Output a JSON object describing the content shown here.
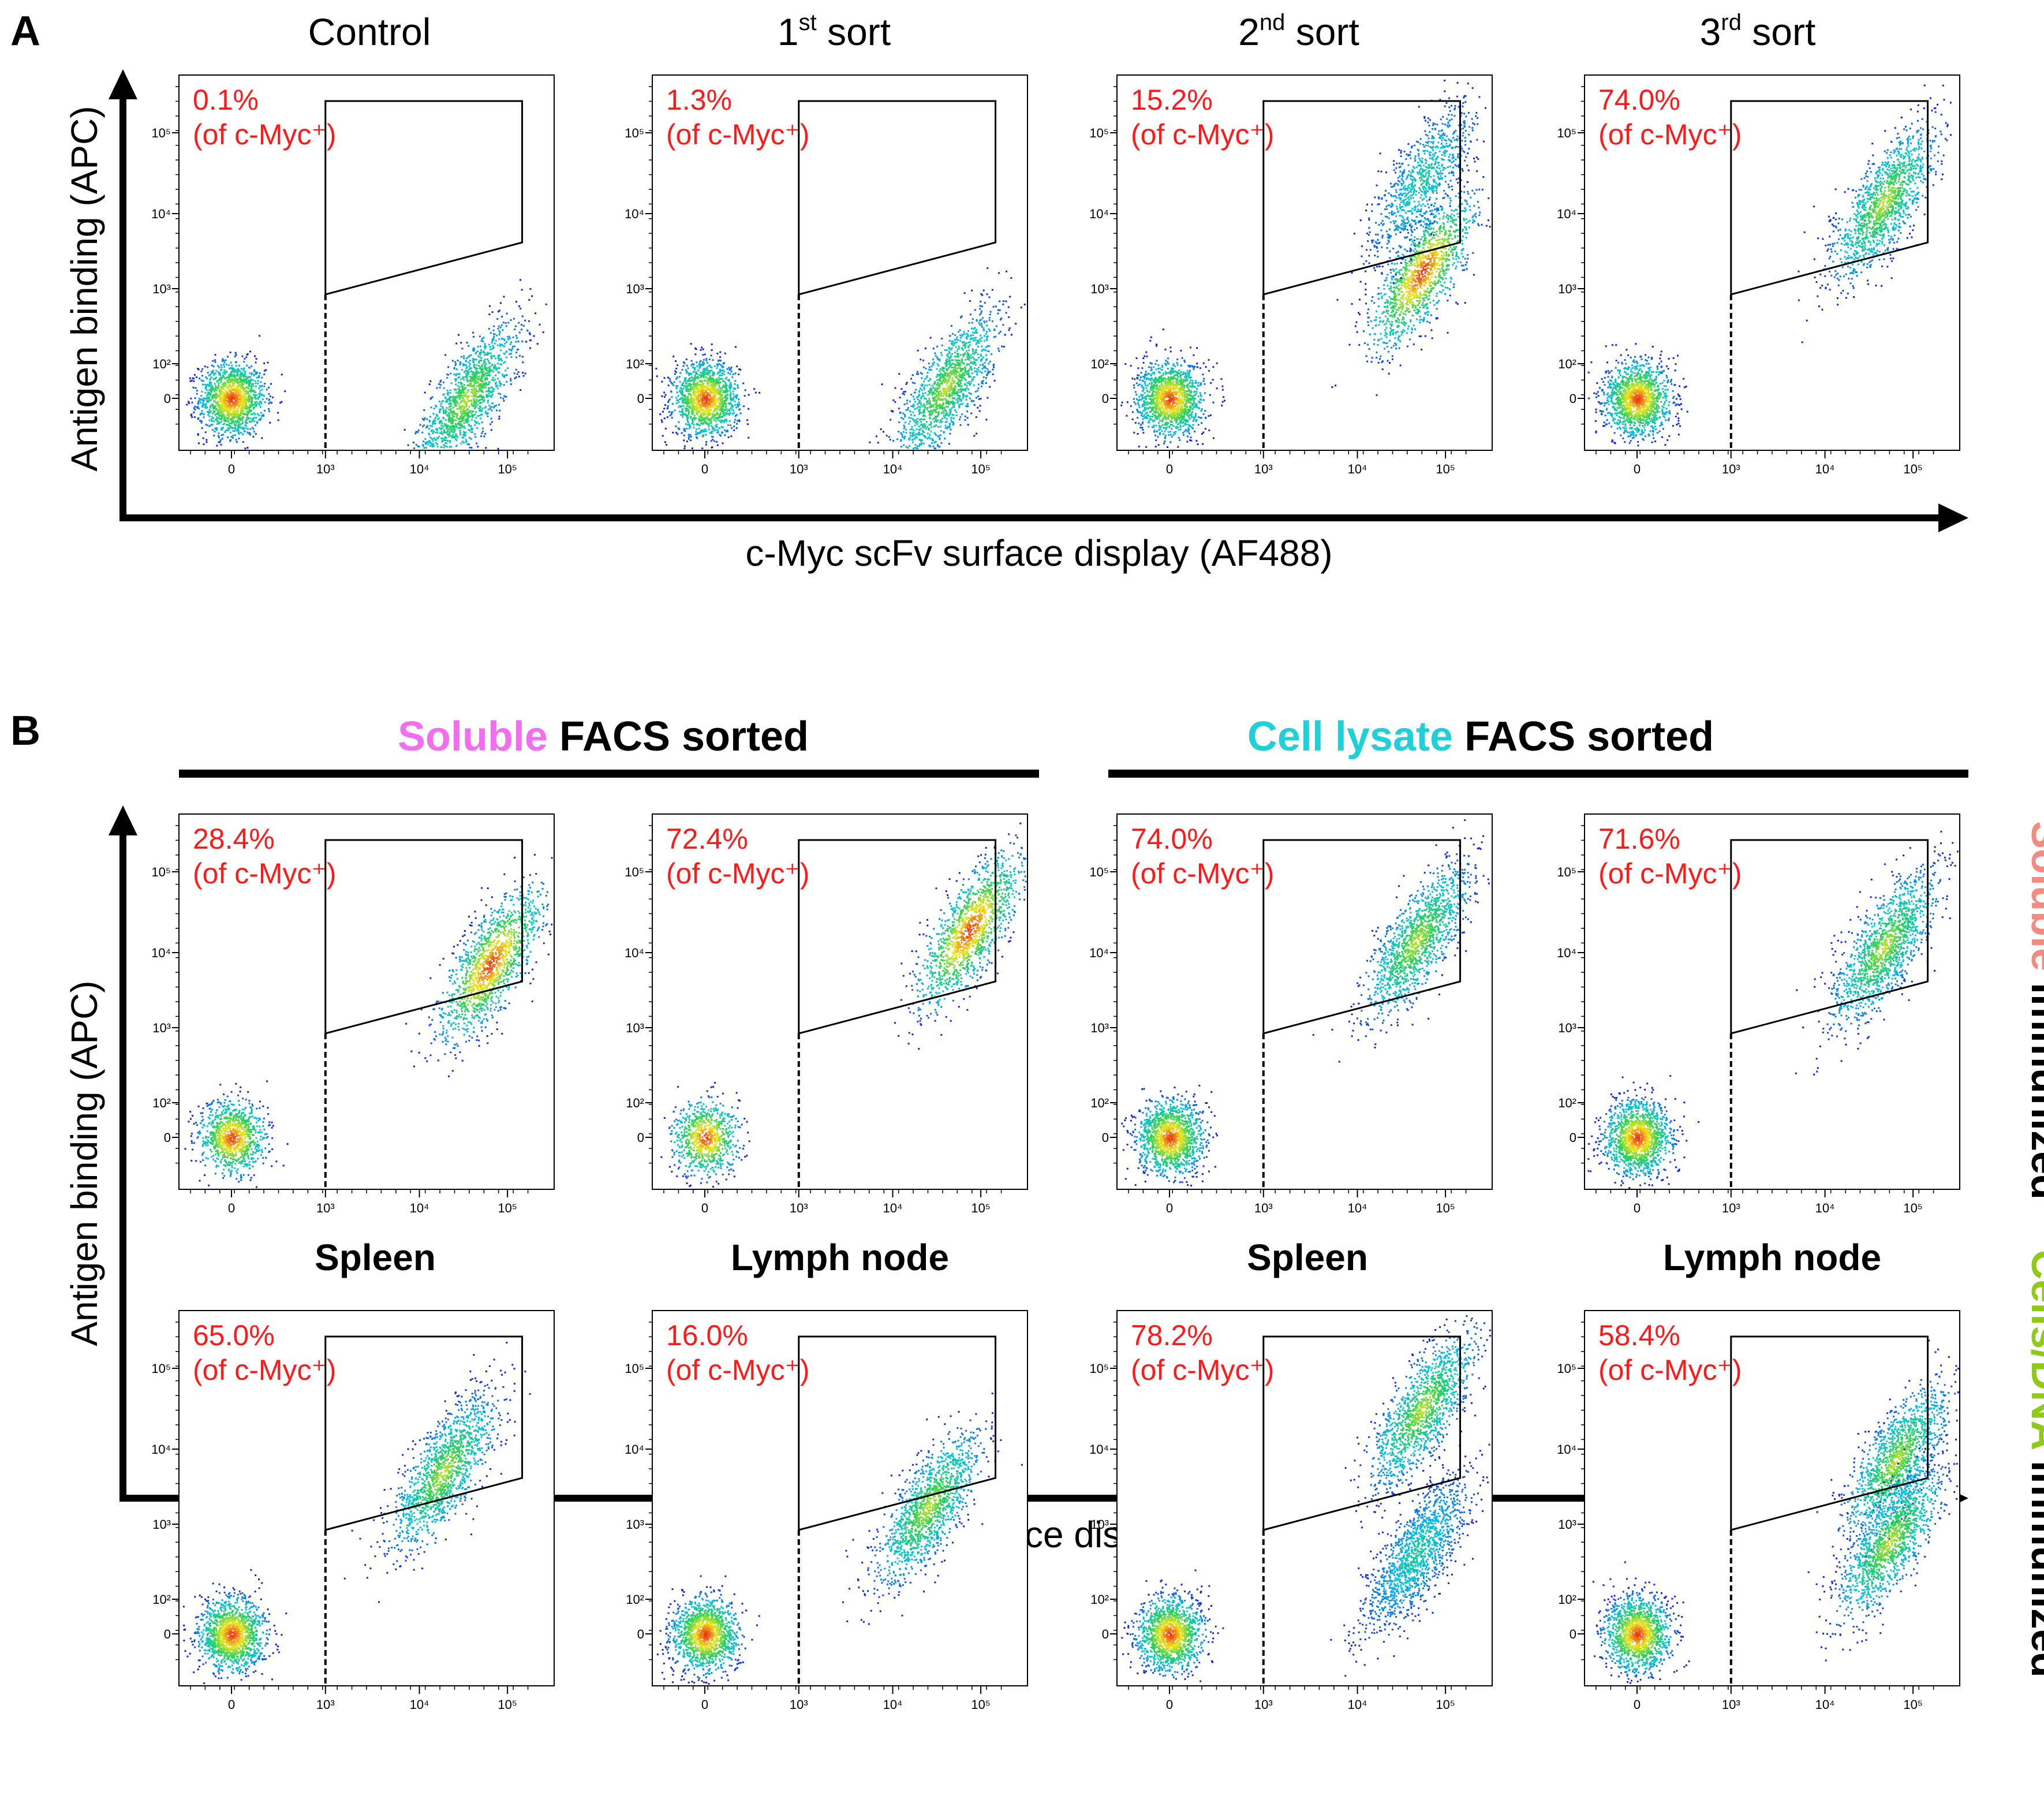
{
  "figure": {
    "panel_a_letter": "A",
    "panel_b_letter": "B",
    "panel_a_x_label": "c-Myc scFv surface display (AF488)",
    "panel_a_y_label": "Antigen binding (APC)",
    "panel_b_x_label": "c-Myc scFv surface display (AF488)",
    "panel_b_y_label": "Antigen binding (APC)",
    "panel_a_titles": [
      {
        "text": "Control",
        "sup": ""
      },
      {
        "text": "1",
        "sup": "st",
        "rest": " sort"
      },
      {
        "text": "2",
        "sup": "nd",
        "rest": " sort"
      },
      {
        "text": "3",
        "sup": "rd",
        "rest": " sort"
      }
    ],
    "group_soluble": {
      "colored": "Soluble",
      "rest": " FACS sorted"
    },
    "group_lysate": {
      "colored": "Cell lysate",
      "rest": " FACS sorted"
    },
    "row_labels": [
      "Spleen",
      "Lymph node",
      "Spleen",
      "Lymph node"
    ],
    "side_label_1": {
      "colored": "Soluble",
      "rest": " immunized"
    },
    "side_label_2": {
      "colored": "Cells/DNA",
      "rest": " immunized"
    },
    "colors": {
      "soluble": "#f26df0",
      "lysate": "#1fd0d8",
      "side_soluble": "#f58a80",
      "side_cells": "#8fca18",
      "percent_text": "#ff1a1a",
      "axis": "#000000"
    }
  },
  "chart_data": [
    {
      "type": "scatter",
      "panel": "A1",
      "title": "Control",
      "percent": "0.1%",
      "note": "(of c-Myc⁺)",
      "gate_bottom_left": "10^2.6",
      "x_ticks": [
        "0",
        "10³",
        "10⁴",
        "10⁵"
      ],
      "y_ticks": [
        "0",
        "10²",
        "10³",
        "10⁴",
        "10⁵"
      ],
      "populations": [
        {
          "x": 0.0,
          "y": 0.0,
          "n": 3500,
          "level": "high"
        },
        {
          "x": 4.0,
          "y": 0.0,
          "n": 3000,
          "level": "mid"
        }
      ]
    },
    {
      "type": "scatter",
      "panel": "A2",
      "title": "1st sort",
      "percent": "1.3%",
      "note": "(of c-Myc⁺)",
      "x_ticks": [
        "0",
        "10³",
        "10⁴",
        "10⁵"
      ],
      "y_ticks": [
        "0",
        "10²",
        "10³",
        "10⁴",
        "10⁵"
      ],
      "populations": [
        {
          "x": 0.0,
          "y": 0.0,
          "n": 3200,
          "level": "high"
        },
        {
          "x": 4.1,
          "y": 0.2,
          "n": 2800,
          "level": "mid"
        }
      ]
    },
    {
      "type": "scatter",
      "panel": "A3",
      "title": "2nd sort",
      "percent": "15.2%",
      "note": "(of c-Myc⁺)",
      "x_ticks": [
        "0",
        "10³",
        "10⁴",
        "10⁵"
      ],
      "y_ticks": [
        "0",
        "10²",
        "10³",
        "10⁴",
        "10⁵"
      ],
      "populations": [
        {
          "x": 0.0,
          "y": 0.0,
          "n": 2000,
          "level": "high"
        },
        {
          "x": 4.3,
          "y": 2.2,
          "n": 3200,
          "level": "high"
        },
        {
          "x": 4.3,
          "y": 3.8,
          "n": 900,
          "level": "low"
        }
      ]
    },
    {
      "type": "scatter",
      "panel": "A4",
      "title": "3rd sort",
      "percent": "74.0%",
      "note": "(of c-Myc⁺)",
      "x_ticks": [
        "0",
        "10³",
        "10⁴",
        "10⁵"
      ],
      "y_ticks": [
        "0",
        "10²",
        "10³",
        "10⁴",
        "10⁵"
      ],
      "populations": [
        {
          "x": 0.0,
          "y": 0.0,
          "n": 1800,
          "level": "high"
        },
        {
          "x": 4.2,
          "y": 3.4,
          "n": 5000,
          "level": "mid"
        }
      ]
    },
    {
      "type": "scatter",
      "panel": "B1",
      "row": "Soluble immunized",
      "col": "Spleen / Soluble FACS sorted",
      "percent": "28.4%",
      "note": "(of c-Myc⁺)",
      "x_ticks": [
        "0",
        "10³",
        "10⁴",
        "10⁵"
      ],
      "y_ticks": [
        "0",
        "10²",
        "10³",
        "10⁴",
        "10⁵"
      ],
      "populations": [
        {
          "x": 0.0,
          "y": 0.0,
          "n": 1000,
          "level": "high"
        },
        {
          "x": 4.4,
          "y": 3.0,
          "n": 5000,
          "level": "high"
        }
      ]
    },
    {
      "type": "scatter",
      "panel": "B2",
      "row": "Soluble immunized",
      "col": "Lymph node / Soluble FACS sorted",
      "percent": "72.4%",
      "note": "(of c-Myc⁺)",
      "x_ticks": [
        "0",
        "10³",
        "10⁴",
        "10⁵"
      ],
      "y_ticks": [
        "0",
        "10²",
        "10³",
        "10⁴",
        "10⁵"
      ],
      "populations": [
        {
          "x": 0.0,
          "y": 0.0,
          "n": 800,
          "level": "high"
        },
        {
          "x": 4.5,
          "y": 3.6,
          "n": 5000,
          "level": "high"
        }
      ]
    },
    {
      "type": "scatter",
      "panel": "B3",
      "row": "Soluble immunized",
      "col": "Spleen / Cell lysate FACS sorted",
      "percent": "74.0%",
      "note": "(of c-Myc⁺)",
      "x_ticks": [
        "0",
        "10³",
        "10⁴",
        "10⁵"
      ],
      "y_ticks": [
        "0",
        "10²",
        "10³",
        "10⁴",
        "10⁵"
      ],
      "populations": [
        {
          "x": 0.0,
          "y": 0.0,
          "n": 1800,
          "level": "high"
        },
        {
          "x": 4.2,
          "y": 3.4,
          "n": 5000,
          "level": "mid"
        }
      ]
    },
    {
      "type": "scatter",
      "panel": "B4",
      "row": "Soluble immunized",
      "col": "Lymph node / Cell lysate FACS sorted",
      "percent": "71.6%",
      "note": "(of c-Myc⁺)",
      "x_ticks": [
        "0",
        "10³",
        "10⁴",
        "10⁵"
      ],
      "y_ticks": [
        "0",
        "10²",
        "10³",
        "10⁴",
        "10⁵"
      ],
      "populations": [
        {
          "x": 0.0,
          "y": 0.0,
          "n": 1500,
          "level": "high"
        },
        {
          "x": 4.2,
          "y": 3.3,
          "n": 5000,
          "level": "mid"
        }
      ]
    },
    {
      "type": "scatter",
      "panel": "B5",
      "row": "Cells/DNA immunized",
      "col": "Spleen / Soluble FACS sorted",
      "percent": "65.0%",
      "note": "(of c-Myc⁺)",
      "x_ticks": [
        "0",
        "10³",
        "10⁴",
        "10⁵"
      ],
      "y_ticks": [
        "0",
        "10²",
        "10³",
        "10⁴",
        "10⁵"
      ],
      "populations": [
        {
          "x": 0.0,
          "y": 0.0,
          "n": 1600,
          "level": "high"
        },
        {
          "x": 3.6,
          "y": 2.8,
          "n": 6000,
          "level": "mid"
        }
      ]
    },
    {
      "type": "scatter",
      "panel": "B6",
      "row": "Cells/DNA immunized",
      "col": "Lymph node / Soluble FACS sorted",
      "percent": "16.0%",
      "note": "(of c-Myc⁺)",
      "x_ticks": [
        "0",
        "10³",
        "10⁴",
        "10⁵"
      ],
      "y_ticks": [
        "0",
        "10²",
        "10³",
        "10⁴",
        "10⁵"
      ],
      "populations": [
        {
          "x": 0.0,
          "y": 0.0,
          "n": 1600,
          "level": "high"
        },
        {
          "x": 3.8,
          "y": 2.2,
          "n": 5500,
          "level": "mid"
        }
      ]
    },
    {
      "type": "scatter",
      "panel": "B7",
      "row": "Cells/DNA immunized",
      "col": "Spleen / Cell lysate FACS sorted",
      "percent": "78.2%",
      "note": "(of c-Myc⁺)",
      "x_ticks": [
        "0",
        "10³",
        "10⁴",
        "10⁵"
      ],
      "y_ticks": [
        "0",
        "10²",
        "10³",
        "10⁴",
        "10⁵"
      ],
      "populations": [
        {
          "x": 0.0,
          "y": 0.0,
          "n": 1800,
          "level": "high"
        },
        {
          "x": 4.3,
          "y": 3.9,
          "n": 4500,
          "level": "mid"
        },
        {
          "x": 4.2,
          "y": 1.4,
          "n": 1500,
          "level": "low"
        }
      ]
    },
    {
      "type": "scatter",
      "panel": "B8",
      "row": "Cells/DNA immunized",
      "col": "Lymph node / Cell lysate FACS sorted",
      "percent": "58.4%",
      "note": "(of c-Myc⁺)",
      "x_ticks": [
        "0",
        "10³",
        "10⁴",
        "10⁵"
      ],
      "y_ticks": [
        "0",
        "10²",
        "10³",
        "10⁴",
        "10⁵"
      ],
      "populations": [
        {
          "x": 0.0,
          "y": 0.0,
          "n": 1600,
          "level": "high"
        },
        {
          "x": 4.4,
          "y": 3.0,
          "n": 4500,
          "level": "mid"
        },
        {
          "x": 4.3,
          "y": 1.6,
          "n": 1500,
          "level": "mid"
        }
      ]
    }
  ]
}
